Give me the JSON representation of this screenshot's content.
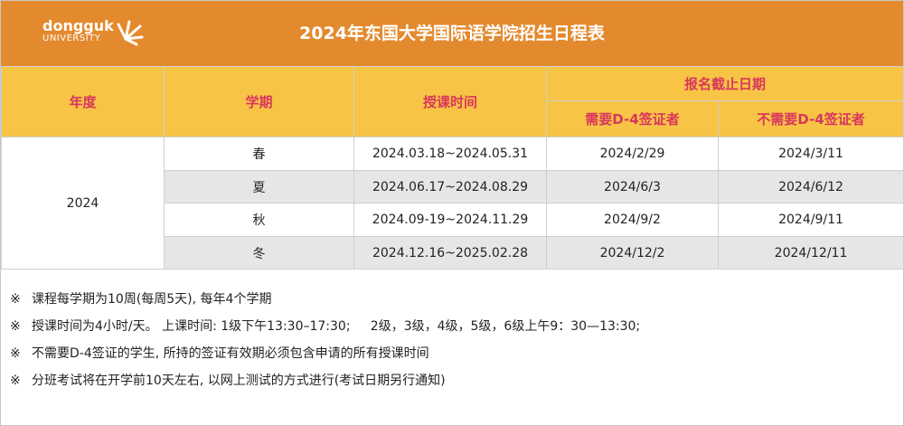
{
  "header": {
    "logo_line1": "dongguk",
    "logo_line2": "UNIVERSITY",
    "title": "2024年东国大学国际语学院招生日程表"
  },
  "table": {
    "columns": [
      "年度",
      "学期",
      "授课时间"
    ],
    "deadline_group": "报名截止日期",
    "deadline_columns": [
      "需要D-4签证者",
      "不需要D-4签证者"
    ],
    "year": "2024",
    "rows": [
      [
        "春",
        "2024.03.18~2024.05.31",
        "2024/2/29",
        "2024/3/11"
      ],
      [
        "夏",
        "2024.06.17~2024.08.29",
        "2024/6/3",
        "2024/6/12"
      ],
      [
        "秋",
        "2024.09-19~2024.11.29",
        "2024/9/2",
        "2024/9/11"
      ],
      [
        "冬",
        "2024.12.16~2025.02.28",
        "2024/12/2",
        "2024/12/11"
      ]
    ]
  },
  "notes": [
    {
      "mark": "※",
      "text": "课程每学期为10周(每周5天), 每年4个学期"
    },
    {
      "mark": "※",
      "text": "授课时间为4小时/天。 上课时间: 1级下午13:30–17:30;     2级，3级，4级，5级，6级上午9：30—13:30;"
    },
    {
      "mark": "※",
      "text": "不需要D-4签证的学生, 所持的签证有效期必须包含申请的所有授课时间"
    },
    {
      "mark": "※",
      "text": "分班考试将在开学前10天左右, 以网上测试的方式进行(考试日期另行通知)"
    }
  ]
}
